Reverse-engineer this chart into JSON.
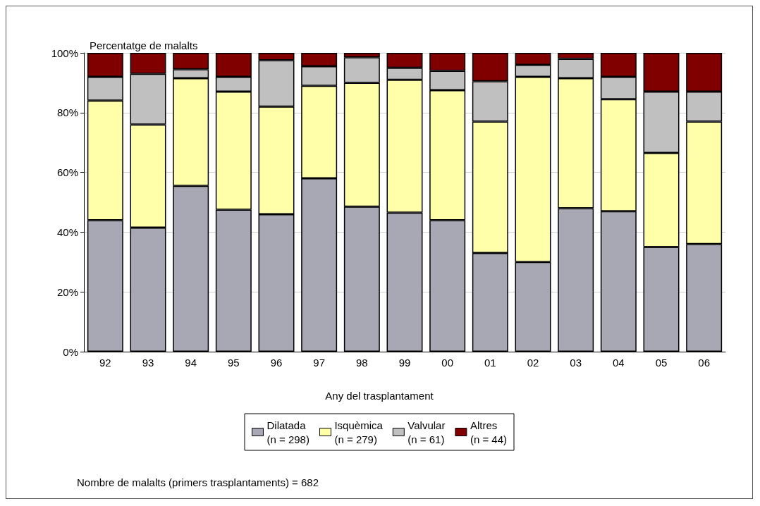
{
  "chart_data": {
    "type": "bar",
    "stacked": true,
    "ylabel": "Percentatge de malalts",
    "xlabel": "Any del trasplantament",
    "categories": [
      "92",
      "93",
      "94",
      "95",
      "96",
      "97",
      "98",
      "99",
      "00",
      "01",
      "02",
      "03",
      "04",
      "05",
      "06"
    ],
    "series": [
      {
        "name": "Dilatada\n(n = 298)",
        "color": "#a8a8b4",
        "values": [
          44,
          41.5,
          55.5,
          47.5,
          46,
          58,
          48.5,
          46.5,
          44,
          33,
          30,
          48,
          47,
          35,
          36
        ]
      },
      {
        "name": "Isquèmica\n(n = 279)",
        "color": "#ffffaa",
        "values": [
          40,
          34.5,
          36,
          39.5,
          36,
          31,
          41.5,
          44.5,
          43.5,
          44,
          62,
          43.5,
          37.5,
          31.5,
          41
        ]
      },
      {
        "name": "Valvular\n(n = 61)",
        "color": "#c0c0c0",
        "values": [
          8,
          17,
          3,
          5,
          15.5,
          6.5,
          8.5,
          4,
          6.5,
          13.5,
          4,
          6.5,
          7.5,
          20.5,
          10
        ]
      },
      {
        "name": "Altres\n(n = 44)",
        "color": "#800000",
        "values": [
          8,
          7,
          5.5,
          8,
          2.5,
          4.5,
          1.5,
          5,
          6,
          9.5,
          4,
          2,
          8,
          13,
          13
        ]
      }
    ],
    "ylim": [
      0,
      100
    ],
    "yticks": [
      {
        "value": 0,
        "label": "0%"
      },
      {
        "value": 20,
        "label": "20%"
      },
      {
        "value": 40,
        "label": "40%"
      },
      {
        "value": 60,
        "label": "60%"
      },
      {
        "value": 80,
        "label": "80%"
      },
      {
        "value": 100,
        "label": "100%"
      }
    ],
    "grid": "y",
    "legend": "bottom",
    "annotations": [
      "Nombre de malalts (primers trasplantaments) = 682"
    ]
  }
}
